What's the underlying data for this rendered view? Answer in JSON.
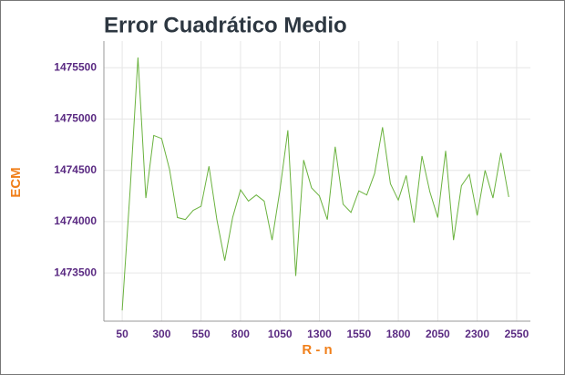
{
  "chart_data": {
    "type": "line",
    "title": "Error Cuadrático Medio",
    "x_label": "R - n",
    "y_label": "ECM",
    "x": [
      50,
      100,
      150,
      200,
      250,
      300,
      350,
      400,
      450,
      500,
      550,
      600,
      650,
      700,
      750,
      800,
      850,
      900,
      950,
      1000,
      1050,
      1100,
      1150,
      1200,
      1250,
      1300,
      1350,
      1400,
      1450,
      1500,
      1550,
      1600,
      1650,
      1700,
      1750,
      1800,
      1850,
      1900,
      1950,
      2000,
      2050,
      2100,
      2150,
      2200,
      2250,
      2300,
      2350,
      2400,
      2450,
      2500
    ],
    "series": [
      {
        "color": "#6ab23e",
        "values": [
          1473135,
          1474300,
          1475600,
          1474230,
          1474840,
          1474810,
          1474510,
          1474040,
          1474020,
          1474110,
          1474150,
          1474540,
          1474020,
          1473620,
          1474040,
          1474310,
          1474200,
          1474260,
          1474200,
          1473820,
          1474310,
          1474890,
          1473470,
          1474600,
          1474330,
          1474250,
          1474020,
          1474730,
          1474170,
          1474090,
          1474300,
          1474260,
          1474470,
          1474920,
          1474370,
          1474210,
          1474450,
          1473990,
          1474640,
          1474290,
          1474040,
          1474690,
          1473820,
          1474350,
          1474460,
          1474060,
          1474500,
          1474230,
          1474670,
          1474240
        ]
      }
    ],
    "xlim": [
      -66,
      2637
    ],
    "xticks": [
      50,
      300,
      550,
      800,
      1050,
      1300,
      1550,
      1800,
      2050,
      2300,
      2550
    ],
    "ylim": [
      1473030,
      1475760
    ],
    "yticks": [
      1473500,
      1474000,
      1474500,
      1475000,
      1475500
    ],
    "grid": true
  }
}
